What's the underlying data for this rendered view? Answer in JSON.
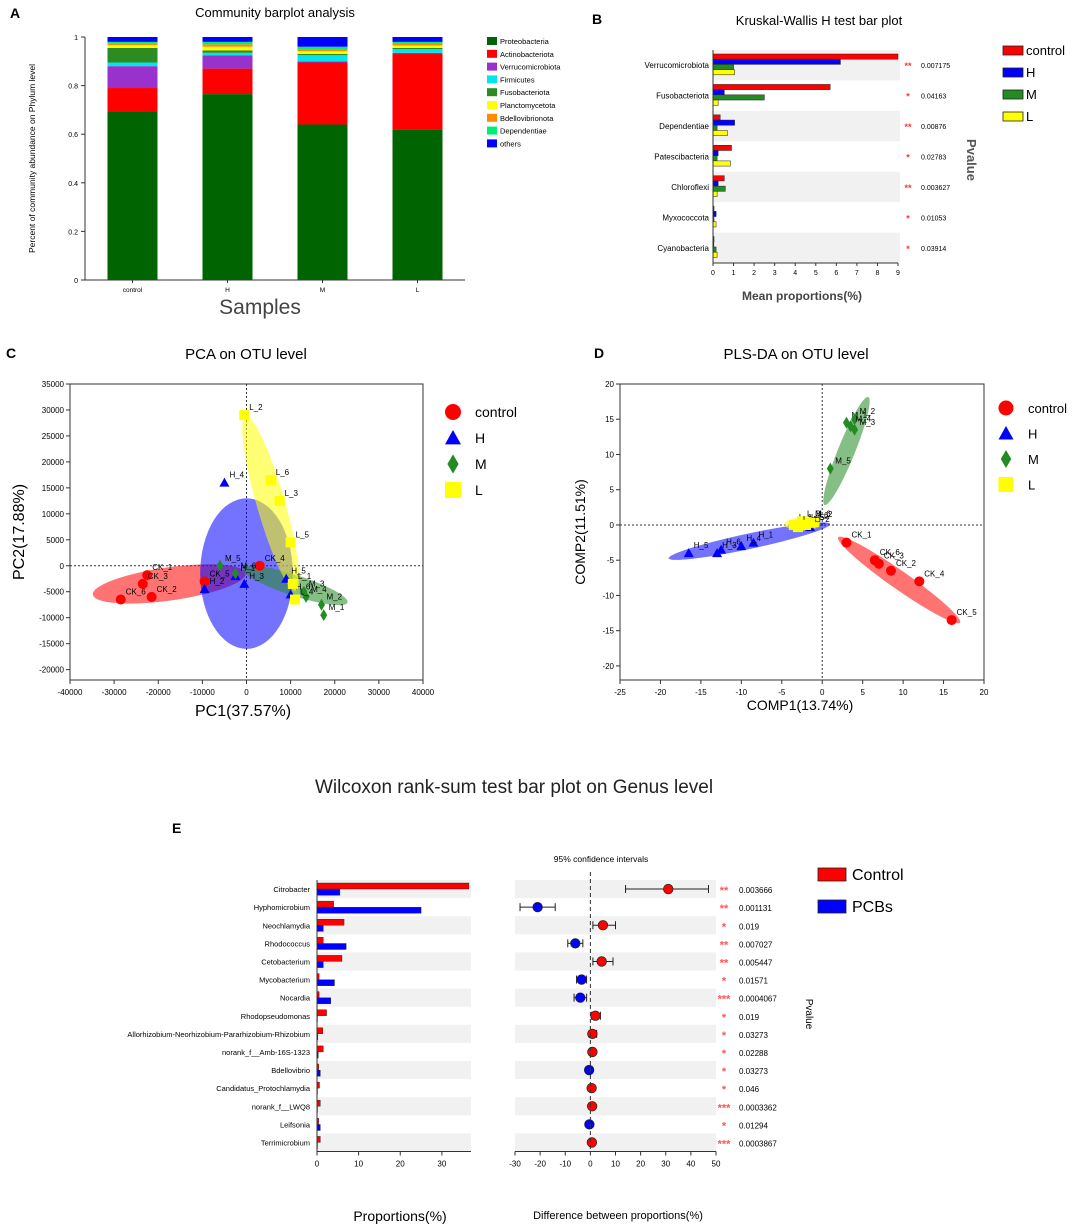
{
  "panel_labels": {
    "A": "A",
    "B": "B",
    "C": "C",
    "D": "D",
    "E": "E"
  },
  "colors": {
    "control": "#ff0000",
    "H": "#0000ff",
    "M": "#228b22",
    "L": "#ffff00",
    "pcbs": "#0000ff",
    "band": "#f1f1f1"
  },
  "chart_data": [
    {
      "id": "A",
      "type": "bar",
      "stacked": true,
      "title": "Community barplot analysis",
      "xlabel": "Samples",
      "ylabel": "Percent of community abundance on Phylum level",
      "categories": [
        "control",
        "H",
        "M",
        "L"
      ],
      "yticks": [
        "0",
        "0.2",
        "0.4",
        "0.6",
        "0.8",
        "1"
      ],
      "ylim": [
        0,
        1
      ],
      "series": [
        {
          "name": "Proteobacteria",
          "color": "#006400",
          "values": [
            0.695,
            0.765,
            0.64,
            0.62
          ]
        },
        {
          "name": "Actinobacteriota",
          "color": "#ff0000",
          "values": [
            0.095,
            0.105,
            0.255,
            0.31
          ]
        },
        {
          "name": "Verrucomicrobiota",
          "color": "#9932cc",
          "values": [
            0.09,
            0.055,
            0.005,
            0.005
          ]
        },
        {
          "name": "Firmicutes",
          "color": "#00e5ee",
          "values": [
            0.015,
            0.01,
            0.025,
            0.015
          ]
        },
        {
          "name": "Fusobacteriota",
          "color": "#2e8b22",
          "values": [
            0.06,
            0.01,
            0.005,
            0.005
          ]
        },
        {
          "name": "Planctomycetota",
          "color": "#ffff00",
          "values": [
            0.012,
            0.015,
            0.012,
            0.01
          ]
        },
        {
          "name": "Bdellovibrionota",
          "color": "#ff8c00",
          "values": [
            0.008,
            0.01,
            0.008,
            0.008
          ]
        },
        {
          "name": "Dependentiae",
          "color": "#00ee76",
          "values": [
            0.005,
            0.01,
            0.01,
            0.007
          ]
        },
        {
          "name": "others",
          "color": "#0000ff",
          "values": [
            0.02,
            0.02,
            0.04,
            0.02
          ]
        }
      ]
    },
    {
      "id": "B",
      "type": "bar",
      "orientation": "horizontal",
      "title": "Kruskal-Wallis H test bar plot",
      "xlabel": "Mean proportions(%)",
      "ylabel": "Pvalue",
      "xlim": [
        0,
        9
      ],
      "xticks": [
        "0",
        "1",
        "2",
        "3",
        "4",
        "5",
        "6",
        "7",
        "8",
        "9"
      ],
      "categories": [
        "Verrucomicrobiota",
        "Fusobacteriota",
        "Dependentiae",
        "Patescibacteria",
        "Chloroflexi",
        "Myxococcota",
        "Cyanobacteria"
      ],
      "series": [
        {
          "name": "control",
          "color": "#ff0000",
          "values": [
            9.0,
            5.7,
            0.35,
            0.9,
            0.55,
            0.05,
            0.05
          ]
        },
        {
          "name": "H",
          "color": "#0000ff",
          "values": [
            6.2,
            0.55,
            1.05,
            0.25,
            0.25,
            0.15,
            0.04
          ]
        },
        {
          "name": "M",
          "color": "#228b22",
          "values": [
            1.0,
            2.5,
            0.2,
            0.2,
            0.6,
            0.05,
            0.15
          ]
        },
        {
          "name": "L",
          "color": "#ffff00",
          "values": [
            1.05,
            0.25,
            0.7,
            0.85,
            0.2,
            0.15,
            0.2
          ]
        }
      ],
      "stars": [
        "**",
        "*",
        "**",
        "*",
        "**",
        "*",
        "*"
      ],
      "pvalues": [
        "0.007175",
        "0.04163",
        "0.00876",
        "0.02783",
        "0.003627",
        "0.01053",
        "0.03914"
      ]
    },
    {
      "id": "C",
      "type": "scatter",
      "title": "PCA on OTU level",
      "xlabel": "PC1(37.57%)",
      "ylabel": "PC2(17.88%)",
      "xlim": [
        -40000,
        40000
      ],
      "ylim": [
        -22000,
        35000
      ],
      "xticks": [
        "-40000",
        "-30000",
        "-20000",
        "-10000",
        "0",
        "10000",
        "20000",
        "30000",
        "40000"
      ],
      "yticks": [
        "35000",
        "30000",
        "25000",
        "20000",
        "15000",
        "10000",
        "5000",
        "0",
        "-5000",
        "-10000",
        "-15000",
        "-20000"
      ],
      "legend": [
        "control",
        "H",
        "M",
        "L"
      ],
      "points": [
        {
          "label": "CK_1",
          "group": "control",
          "x": -22500,
          "y": -1800
        },
        {
          "label": "CK_2",
          "group": "control",
          "x": -21500,
          "y": -6000
        },
        {
          "label": "CK_3",
          "group": "control",
          "x": -23500,
          "y": -3500
        },
        {
          "label": "CK_4",
          "group": "control",
          "x": 3000,
          "y": 0
        },
        {
          "label": "CK_5",
          "group": "control",
          "x": -9500,
          "y": -3000
        },
        {
          "label": "CK_6",
          "group": "control",
          "x": -28500,
          "y": -6500
        },
        {
          "label": "H_1",
          "group": "H",
          "x": -2500,
          "y": -2000
        },
        {
          "label": "H_2",
          "group": "H",
          "x": -9500,
          "y": -4500
        },
        {
          "label": "H_3",
          "group": "H",
          "x": -500,
          "y": -3500
        },
        {
          "label": "H_4",
          "group": "H",
          "x": -5000,
          "y": 16000
        },
        {
          "label": "H_5",
          "group": "H",
          "x": 9000,
          "y": -2500
        },
        {
          "label": "H_6",
          "group": "H",
          "x": 10000,
          "y": -5500
        },
        {
          "label": "M_1",
          "group": "M",
          "x": 17500,
          "y": -9500
        },
        {
          "label": "M_2",
          "group": "M",
          "x": 17000,
          "y": -7500
        },
        {
          "label": "M_3",
          "group": "M",
          "x": 13000,
          "y": -5000
        },
        {
          "label": "M_4",
          "group": "M",
          "x": 13500,
          "y": -6000
        },
        {
          "label": "M_5",
          "group": "M",
          "x": -6000,
          "y": 0
        },
        {
          "label": "M_6",
          "group": "M",
          "x": -2500,
          "y": -1500
        },
        {
          "label": "L_1",
          "group": "L",
          "x": 10500,
          "y": -3500
        },
        {
          "label": "L_2",
          "group": "L",
          "x": -500,
          "y": 29000
        },
        {
          "label": "L_3",
          "group": "L",
          "x": 7500,
          "y": 12500
        },
        {
          "label": "L_4",
          "group": "L",
          "x": 11000,
          "y": -6500
        },
        {
          "label": "L_5",
          "group": "L",
          "x": 10000,
          "y": 4500
        },
        {
          "label": "L_6",
          "group": "L",
          "x": 5500,
          "y": 16500
        }
      ],
      "ellipses": [
        {
          "group": "control",
          "cx": -17500,
          "cy": -3500,
          "rx": 17500,
          "ry": 3200,
          "angle": -8
        },
        {
          "group": "H",
          "cx": 0,
          "cy": -1500,
          "rx": 10500,
          "ry": 14500,
          "angle": 0
        },
        {
          "group": "M",
          "cx": 11000,
          "cy": -3800,
          "rx": 12500,
          "ry": 2000,
          "angle": 18
        },
        {
          "group": "L",
          "cx": 5500,
          "cy": 12000,
          "rx": 3200,
          "ry": 17500,
          "angle": -16
        }
      ]
    },
    {
      "id": "D",
      "type": "scatter",
      "title": "PLS-DA on OTU level",
      "xlabel": "COMP1(13.74%)",
      "ylabel": "COMP2(11.51%)",
      "xlim": [
        -25,
        20
      ],
      "ylim": [
        -22,
        20
      ],
      "xticks": [
        "-25",
        "-20",
        "-15",
        "-10",
        "-5",
        "0",
        "5",
        "10",
        "15",
        "20"
      ],
      "yticks": [
        "20",
        "15",
        "10",
        "5",
        "0",
        "-5",
        "-10",
        "-15",
        "-20"
      ],
      "legend": [
        "control",
        "H",
        "M",
        "L"
      ],
      "points": [
        {
          "label": "CK_1",
          "group": "control",
          "x": 3,
          "y": -2.5
        },
        {
          "label": "CK_2",
          "group": "control",
          "x": 8.5,
          "y": -6.5
        },
        {
          "label": "CK_3",
          "group": "control",
          "x": 7,
          "y": -5.5
        },
        {
          "label": "CK_4",
          "group": "control",
          "x": 12,
          "y": -8
        },
        {
          "label": "CK_5",
          "group": "control",
          "x": 16,
          "y": -13.5
        },
        {
          "label": "CK_6",
          "group": "control",
          "x": 6.5,
          "y": -5
        },
        {
          "label": "H_1",
          "group": "H",
          "x": -8.5,
          "y": -2.5
        },
        {
          "label": "H_2",
          "group": "H",
          "x": -1.5,
          "y": -0.3
        },
        {
          "label": "H_3",
          "group": "H",
          "x": -13,
          "y": -4
        },
        {
          "label": "H_4",
          "group": "H",
          "x": -10,
          "y": -3
        },
        {
          "label": "H_5",
          "group": "H",
          "x": -16.5,
          "y": -4
        },
        {
          "label": "H_6",
          "group": "H",
          "x": -12.5,
          "y": -3.5
        },
        {
          "label": "M_1",
          "group": "M",
          "x": 3,
          "y": 14.5
        },
        {
          "label": "M_2",
          "group": "M",
          "x": 4,
          "y": 15
        },
        {
          "label": "M_3",
          "group": "M",
          "x": 4,
          "y": 13.5
        },
        {
          "label": "M_4",
          "group": "M",
          "x": 3.5,
          "y": 14
        },
        {
          "label": "M_5",
          "group": "M",
          "x": 1,
          "y": 8
        },
        {
          "label": "M_6",
          "group": "M",
          "x": -1.5,
          "y": 0.5
        },
        {
          "label": "L_1",
          "group": "L",
          "x": -3.5,
          "y": 0
        },
        {
          "label": "L_2",
          "group": "L",
          "x": -1,
          "y": 0.4
        },
        {
          "label": "L_3",
          "group": "L",
          "x": -2.5,
          "y": 0.5
        },
        {
          "label": "L_4",
          "group": "L",
          "x": -3,
          "y": -0.3
        },
        {
          "label": "L_5",
          "group": "L",
          "x": -2,
          "y": 0
        },
        {
          "label": "L_6",
          "group": "L",
          "x": -1.5,
          "y": 0.3
        }
      ],
      "ellipses": [
        {
          "group": "control",
          "cx": 9.5,
          "cy": -7.8,
          "rx": 9.2,
          "ry": 1.3,
          "angle": 35
        },
        {
          "group": "H",
          "cx": -9,
          "cy": -2.3,
          "rx": 10.2,
          "ry": 1.1,
          "angle": -12
        },
        {
          "group": "M",
          "cx": 3,
          "cy": 10.5,
          "rx": 7.2,
          "ry": 1.2,
          "angle": -68
        },
        {
          "group": "L",
          "cx": -2.5,
          "cy": 0.1,
          "rx": 2.2,
          "ry": 0.9,
          "angle": 0
        }
      ]
    },
    {
      "id": "E",
      "type": "bar",
      "orientation": "horizontal",
      "title": "Wilcoxon rank-sum test bar plot on Genus level",
      "xlabel": "Proportions(%)",
      "xlabel2": "Difference between proportions(%)",
      "ci_title": "95% confidence intervals",
      "ylabel": "Pvalue",
      "xlim": [
        0,
        37
      ],
      "xticks": [
        "0",
        "10",
        "20",
        "30"
      ],
      "xlim2": [
        -30,
        50
      ],
      "xticks2": [
        "-30",
        "-20",
        "-10",
        "0",
        "10",
        "20",
        "30",
        "40",
        "50"
      ],
      "legend": [
        "Control",
        "PCBs"
      ],
      "categories": [
        "Citrobacter",
        "Hyphomicrobium",
        "Neochlamydia",
        "Rhodococcus",
        "Cetobacterium",
        "Mycobacterium",
        "Nocardia",
        "Rhodopseudomonas",
        "Allorhizobium-Neorhizobium-Pararhizobium-Rhizobium",
        "norank_f__Amb-16S-1323",
        "Bdellovibrio",
        "Candidatus_Protochlamydia",
        "norank_f__LWQ8",
        "Leifsonia",
        "Terrimicrobium"
      ],
      "series": [
        {
          "name": "Control",
          "color": "#ff0000",
          "values": [
            36.5,
            4,
            6.5,
            1.5,
            6,
            0.5,
            0.5,
            2.3,
            1.4,
            1.5,
            0.4,
            0.6,
            0.8,
            0.4,
            0.8
          ]
        },
        {
          "name": "PCBs",
          "color": "#0000ff",
          "values": [
            5.5,
            25,
            1.5,
            7,
            1.5,
            4.2,
            3.3,
            0.1,
            0.2,
            0.3,
            0.8,
            0.1,
            0.1,
            0.8,
            0.05
          ]
        }
      ],
      "differences": [
        31,
        -21,
        5,
        -6,
        4.5,
        -3.5,
        -4,
        2,
        0.8,
        0.8,
        -0.5,
        0.5,
        0.7,
        -0.4,
        0.6
      ],
      "ci_low": [
        14,
        -28,
        1,
        -9,
        1,
        -5.5,
        -6.5,
        0.5,
        -0.5,
        0,
        -1.2,
        0,
        0.2,
        -0.9,
        0.2
      ],
      "ci_high": [
        47,
        -14,
        10,
        -3,
        9,
        -1.5,
        -1.5,
        4,
        2.5,
        1.5,
        0.2,
        1,
        1.2,
        0.1,
        1
      ],
      "stars": [
        "**",
        "**",
        "*",
        "**",
        "**",
        "*",
        "***",
        "*",
        "*",
        "*",
        "*",
        "*",
        "***",
        "*",
        "***"
      ],
      "pvalues": [
        "0.003666",
        "0.001131",
        "0.019",
        "0.007027",
        "0.005447",
        "0.01571",
        "0.0004067",
        "0.019",
        "0.03273",
        "0.02288",
        "0.03273",
        "0.046",
        "0.0003362",
        "0.01294",
        "0.0003867"
      ]
    }
  ]
}
